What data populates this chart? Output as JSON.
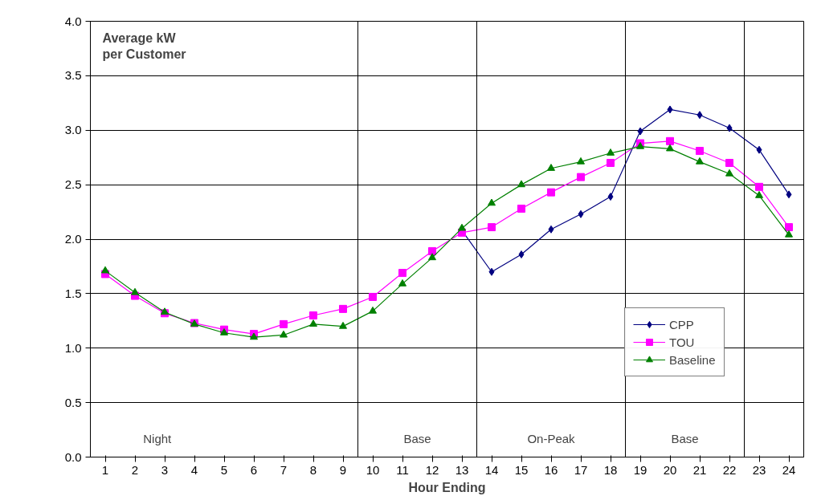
{
  "chart_data": {
    "type": "line",
    "xlabel": "Hour Ending",
    "ylabel": "Average kW\nper Customer",
    "x": [
      1,
      2,
      3,
      4,
      5,
      6,
      7,
      8,
      9,
      10,
      11,
      12,
      13,
      14,
      15,
      16,
      17,
      18,
      19,
      20,
      21,
      22,
      23,
      24
    ],
    "xlim": [
      0.5,
      24.5
    ],
    "xticks": [
      1,
      2,
      3,
      4,
      5,
      6,
      7,
      8,
      9,
      10,
      11,
      12,
      13,
      14,
      15,
      16,
      17,
      18,
      19,
      20,
      21,
      22,
      23,
      24
    ],
    "ylim": [
      0,
      4
    ],
    "yticks": [
      {
        "value": 0,
        "label": "0.0"
      },
      {
        "value": 0.5,
        "label": "0.5"
      },
      {
        "value": 1,
        "label": "1.0"
      },
      {
        "value": 1.5,
        "label": "1.5"
      },
      {
        "value": 2,
        "label": "2.0"
      },
      {
        "value": 2.5,
        "label": "2.5"
      },
      {
        "value": 3,
        "label": "3.0"
      },
      {
        "value": 3.5,
        "label": "3.5"
      },
      {
        "value": 4,
        "label": "4.0"
      }
    ],
    "grid": "y",
    "legend": "right",
    "series": [
      {
        "name": "CPP",
        "color": "#000080",
        "marker": "diamond",
        "values": [
          null,
          null,
          null,
          null,
          null,
          null,
          null,
          null,
          null,
          null,
          null,
          null,
          2.08,
          1.7,
          1.86,
          2.09,
          2.23,
          2.39,
          2.99,
          3.19,
          3.14,
          3.02,
          2.82,
          2.41
        ]
      },
      {
        "name": "TOU",
        "color": "#ff00ff",
        "marker": "square",
        "values": [
          1.68,
          1.48,
          1.32,
          1.23,
          1.17,
          1.13,
          1.22,
          1.3,
          1.36,
          1.47,
          1.69,
          1.89,
          2.06,
          2.11,
          2.28,
          2.43,
          2.57,
          2.7,
          2.88,
          2.9,
          2.81,
          2.7,
          2.48,
          2.11
        ]
      },
      {
        "name": "Baseline",
        "color": "#008000",
        "marker": "triangle",
        "values": [
          1.71,
          1.51,
          1.33,
          1.22,
          1.14,
          1.1,
          1.12,
          1.22,
          1.2,
          1.34,
          1.59,
          1.83,
          2.1,
          2.33,
          2.5,
          2.65,
          2.71,
          2.79,
          2.85,
          2.83,
          2.71,
          2.6,
          2.4,
          2.04
        ]
      }
    ],
    "ref_lines": [
      {
        "axis": "x",
        "value": 9.5
      },
      {
        "axis": "x",
        "value": 13.5
      },
      {
        "axis": "x",
        "value": 18.5
      },
      {
        "axis": "x",
        "value": 22.5
      }
    ],
    "annotations": [
      "Night",
      "Base",
      "On-Peak",
      "Base"
    ]
  }
}
